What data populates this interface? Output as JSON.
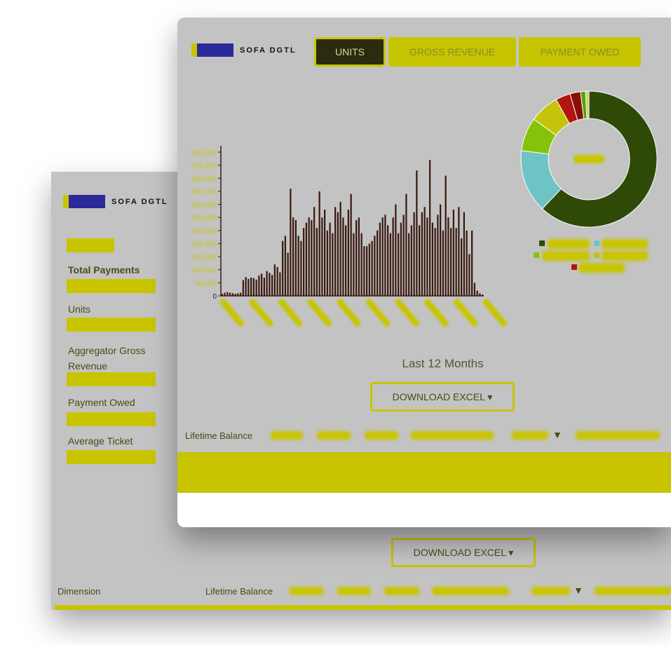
{
  "sidebar": {
    "brand": "SOFA DGTL",
    "items": [
      "Total Payments",
      "Units",
      "Aggregator Gross Revenue",
      "Payment Owed",
      "Average Ticket"
    ],
    "download": "DOWNLOAD EXCEL ▾",
    "dimension": "Dimension",
    "lifetime": "Lifetime Balance",
    "sort_marker": "▼"
  },
  "header": {
    "brand": "SOFA DGTL",
    "tabs": [
      "UNITS",
      "GROSS REVENUE",
      "PAYMENT OWED"
    ]
  },
  "period": "Last 12 Months",
  "download": "DOWNLOAD EXCEL ▾",
  "table": {
    "first_header": "Lifetime Balance",
    "sort_marker": "▼"
  },
  "chart_data": [
    {
      "type": "bar",
      "color": "#3a1a10",
      "ylim": [
        0,
        550000
      ],
      "yticks": [
        0,
        {
          "value": 50000,
          "label": "50,000"
        },
        {
          "value": 100000,
          "label": "100,000"
        },
        {
          "value": 150000,
          "label": "150,000"
        },
        {
          "value": 200000,
          "label": "200,000"
        },
        {
          "value": 250000,
          "label": "250,000"
        },
        {
          "value": 300000,
          "label": "300,000"
        },
        {
          "value": 350000,
          "label": "350,000"
        },
        {
          "value": 400000,
          "label": "400,000"
        },
        {
          "value": 450000,
          "label": "450,000"
        },
        {
          "value": 500000,
          "label": "500,000"
        },
        {
          "value": 550000,
          "label": "550,000"
        }
      ],
      "values": [
        8000,
        12000,
        14000,
        12000,
        10000,
        8000,
        10000,
        12000,
        60000,
        72000,
        65000,
        70000,
        68000,
        62000,
        78000,
        85000,
        70000,
        95000,
        88000,
        80000,
        120000,
        110000,
        90000,
        210000,
        230000,
        165000,
        410000,
        300000,
        290000,
        230000,
        210000,
        260000,
        280000,
        300000,
        290000,
        340000,
        260000,
        400000,
        300000,
        330000,
        250000,
        280000,
        240000,
        340000,
        320000,
        360000,
        300000,
        270000,
        330000,
        390000,
        240000,
        290000,
        300000,
        240000,
        190000,
        190000,
        200000,
        210000,
        230000,
        250000,
        280000,
        300000,
        310000,
        270000,
        240000,
        300000,
        350000,
        240000,
        280000,
        310000,
        390000,
        240000,
        270000,
        320000,
        480000,
        270000,
        320000,
        340000,
        300000,
        520000,
        280000,
        260000,
        310000,
        350000,
        250000,
        460000,
        300000,
        260000,
        330000,
        260000,
        340000,
        220000,
        320000,
        250000,
        160000,
        250000,
        50000,
        20000,
        10000,
        5000
      ]
    },
    {
      "type": "pie",
      "values": [
        62,
        15,
        8,
        7,
        3.5,
        2.5,
        1.2,
        0.8
      ],
      "colors": [
        "#2e4a06",
        "#6ec4c4",
        "#86c20a",
        "#c6c40a",
        "#b0160e",
        "#8a0e08",
        "#5aa010",
        "#c8d060"
      ]
    }
  ]
}
